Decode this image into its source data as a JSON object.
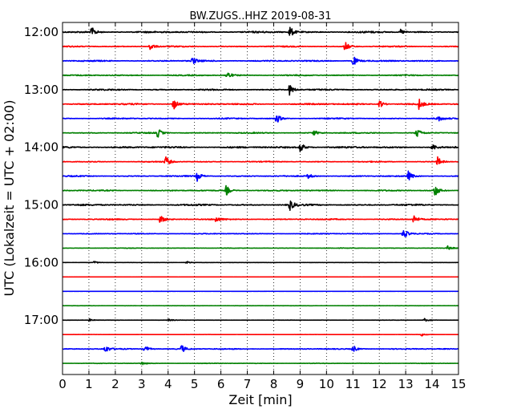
{
  "chart_data": {
    "type": "line",
    "title": "BW.ZUGS..HHZ 2019-08-31",
    "xlabel": "Zeit  [min]",
    "ylabel": "UTC (Lokalzeit = UTC + 02:00)",
    "xlim": [
      0,
      15
    ],
    "x_ticks": [
      "0",
      "1",
      "2",
      "3",
      "4",
      "5",
      "6",
      "7",
      "8",
      "9",
      "10",
      "11",
      "12",
      "13",
      "14",
      "15"
    ],
    "y_ticks": [
      {
        "label": "12:00",
        "row": 0
      },
      {
        "label": "13:00",
        "row": 4
      },
      {
        "label": "14:00",
        "row": 8
      },
      {
        "label": "15:00",
        "row": 12
      },
      {
        "label": "16:00",
        "row": 16
      },
      {
        "label": "17:00",
        "row": 20
      }
    ],
    "colors": [
      "#000000",
      "#ff0000",
      "#0000ff",
      "#008000"
    ],
    "grid": "vertical dotted at each minute",
    "series": [
      {
        "start": "12:00",
        "noise": 0.5,
        "events": [
          [
            1.1,
            1.0
          ],
          [
            8.6,
            1.3
          ],
          [
            12.8,
            0.6
          ]
        ]
      },
      {
        "start": "12:15",
        "noise": 0.35,
        "events": [
          [
            3.3,
            1.0
          ],
          [
            10.7,
            1.0
          ]
        ]
      },
      {
        "start": "12:30",
        "noise": 0.4,
        "events": [
          [
            4.9,
            0.9
          ],
          [
            11.0,
            1.2
          ]
        ]
      },
      {
        "start": "12:45",
        "noise": 0.35,
        "events": [
          [
            6.2,
            1.1
          ]
        ]
      },
      {
        "start": "13:00",
        "noise": 0.4,
        "events": [
          [
            8.6,
            1.2
          ]
        ]
      },
      {
        "start": "13:15",
        "noise": 0.45,
        "events": [
          [
            4.2,
            1.3
          ],
          [
            12.0,
            0.9
          ],
          [
            13.5,
            1.1
          ]
        ]
      },
      {
        "start": "13:30",
        "noise": 0.35,
        "events": [
          [
            8.1,
            1.1
          ],
          [
            14.2,
            0.7
          ]
        ]
      },
      {
        "start": "13:45",
        "noise": 0.35,
        "events": [
          [
            3.6,
            1.0
          ],
          [
            9.5,
            0.6
          ],
          [
            13.4,
            1.1
          ]
        ]
      },
      {
        "start": "14:00",
        "noise": 0.5,
        "events": [
          [
            9.0,
            1.2
          ],
          [
            14.0,
            0.8
          ]
        ]
      },
      {
        "start": "14:15",
        "noise": 0.3,
        "events": [
          [
            3.9,
            1.2
          ],
          [
            14.2,
            1.1
          ]
        ]
      },
      {
        "start": "14:30",
        "noise": 0.35,
        "events": [
          [
            5.1,
            1.0
          ],
          [
            9.3,
            0.6
          ],
          [
            13.1,
            1.0
          ]
        ]
      },
      {
        "start": "14:45",
        "noise": 0.35,
        "events": [
          [
            6.2,
            1.1
          ],
          [
            14.1,
            1.3
          ]
        ]
      },
      {
        "start": "15:00",
        "noise": 0.45,
        "events": [
          [
            8.6,
            1.2
          ]
        ]
      },
      {
        "start": "15:15",
        "noise": 0.35,
        "events": [
          [
            3.7,
            1.0
          ],
          [
            5.8,
            0.6
          ],
          [
            13.3,
            1.0
          ]
        ]
      },
      {
        "start": "15:30",
        "noise": 0.25,
        "events": [
          [
            12.9,
            1.3
          ]
        ]
      },
      {
        "start": "15:45",
        "noise": 0.15,
        "events": [
          [
            14.6,
            0.5
          ]
        ]
      },
      {
        "start": "16:00",
        "noise": 0.05,
        "events": [
          [
            1.2,
            0.3
          ],
          [
            4.7,
            0.3
          ]
        ]
      },
      {
        "start": "16:15",
        "noise": 0.03,
        "events": []
      },
      {
        "start": "16:30",
        "noise": 0.03,
        "events": []
      },
      {
        "start": "16:45",
        "noise": 0.04,
        "events": []
      },
      {
        "start": "17:00",
        "noise": 0.08,
        "events": [
          [
            1.0,
            0.3
          ],
          [
            4.0,
            0.3
          ],
          [
            13.7,
            0.4
          ]
        ]
      },
      {
        "start": "17:15",
        "noise": 0.05,
        "events": [
          [
            13.6,
            0.3
          ]
        ]
      },
      {
        "start": "17:30",
        "noise": 0.3,
        "events": [
          [
            1.6,
            0.9
          ],
          [
            3.1,
            0.9
          ],
          [
            4.5,
            0.9
          ],
          [
            11.0,
            0.8
          ]
        ]
      },
      {
        "start": "17:45",
        "noise": 0.15,
        "events": [
          [
            3.0,
            0.4
          ]
        ]
      }
    ]
  }
}
